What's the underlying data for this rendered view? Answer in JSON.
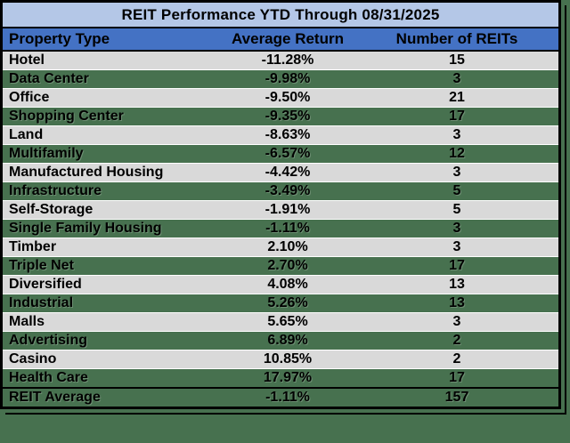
{
  "chart_data": {
    "type": "table",
    "title": "REIT Performance YTD Through 08/31/2025",
    "columns": [
      "Property Type",
      "Average Return",
      "Number of REITs"
    ],
    "rows": [
      {
        "property_type": "Hotel",
        "average_return": "-11.28%",
        "number_of_reits": "15",
        "highlight": false,
        "is_total": false
      },
      {
        "property_type": "Data Center",
        "average_return": "-9.98%",
        "number_of_reits": "3",
        "highlight": true,
        "is_total": false
      },
      {
        "property_type": "Office",
        "average_return": "-9.50%",
        "number_of_reits": "21",
        "highlight": false,
        "is_total": false
      },
      {
        "property_type": "Shopping Center",
        "average_return": "-9.35%",
        "number_of_reits": "17",
        "highlight": true,
        "is_total": false
      },
      {
        "property_type": "Land",
        "average_return": "-8.63%",
        "number_of_reits": "3",
        "highlight": false,
        "is_total": false
      },
      {
        "property_type": "Multifamily",
        "average_return": "-6.57%",
        "number_of_reits": "12",
        "highlight": true,
        "is_total": false
      },
      {
        "property_type": "Manufactured Housing",
        "average_return": "-4.42%",
        "number_of_reits": "3",
        "highlight": false,
        "is_total": false
      },
      {
        "property_type": "Infrastructure",
        "average_return": "-3.49%",
        "number_of_reits": "5",
        "highlight": true,
        "is_total": false
      },
      {
        "property_type": "Self-Storage",
        "average_return": "-1.91%",
        "number_of_reits": "5",
        "highlight": false,
        "is_total": false
      },
      {
        "property_type": "Single Family Housing",
        "average_return": "-1.11%",
        "number_of_reits": "3",
        "highlight": true,
        "is_total": false
      },
      {
        "property_type": "Timber",
        "average_return": "2.10%",
        "number_of_reits": "3",
        "highlight": false,
        "is_total": false
      },
      {
        "property_type": "Triple Net",
        "average_return": "2.70%",
        "number_of_reits": "17",
        "highlight": true,
        "is_total": false
      },
      {
        "property_type": "Diversified",
        "average_return": "4.08%",
        "number_of_reits": "13",
        "highlight": false,
        "is_total": false
      },
      {
        "property_type": "Industrial",
        "average_return": "5.26%",
        "number_of_reits": "13",
        "highlight": true,
        "is_total": false
      },
      {
        "property_type": "Malls",
        "average_return": "5.65%",
        "number_of_reits": "3",
        "highlight": false,
        "is_total": false
      },
      {
        "property_type": "Advertising",
        "average_return": "6.89%",
        "number_of_reits": "2",
        "highlight": true,
        "is_total": false
      },
      {
        "property_type": "Casino",
        "average_return": "10.85%",
        "number_of_reits": "2",
        "highlight": false,
        "is_total": false
      },
      {
        "property_type": "Health Care",
        "average_return": "17.97%",
        "number_of_reits": "17",
        "highlight": true,
        "is_total": false
      },
      {
        "property_type": "REIT Average",
        "average_return": "-1.11%",
        "number_of_reits": "157",
        "highlight": true,
        "is_total": true
      }
    ],
    "layout": {
      "grid": "horizontal separators only",
      "alternating_row_pattern": "light gray / dark green"
    }
  },
  "colors": {
    "page_background": "#47714F",
    "title_bg": "#B4C7E7",
    "header_bg": "#4472C4",
    "row_light_bg": "#D9D9D9",
    "row_green_bg": "#47714F",
    "border": "#000000",
    "row_separator": "#FFFFFF",
    "text": "#000000"
  }
}
